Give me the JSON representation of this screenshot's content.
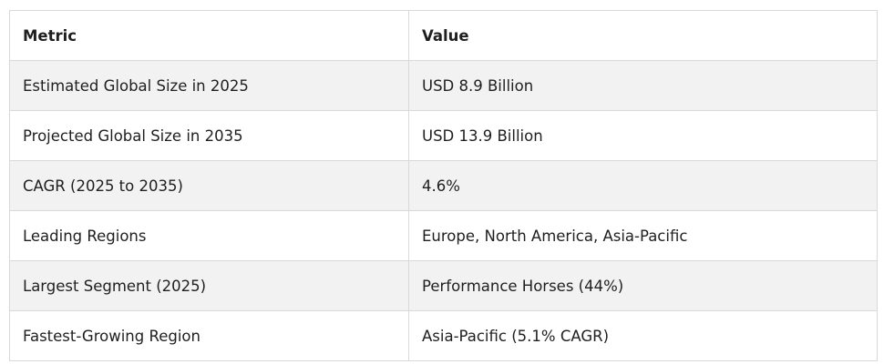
{
  "table": {
    "headers": [
      "Metric",
      "Value"
    ],
    "rows": [
      [
        "Estimated Global Size in 2025",
        "USD 8.9 Billion"
      ],
      [
        "Projected Global Size in 2035",
        "USD 13.9 Billion"
      ],
      [
        "CAGR (2025 to 2035)",
        "4.6%"
      ],
      [
        "Leading Regions",
        "Europe, North America, Asia-Pacific"
      ],
      [
        "Largest Segment (2025)",
        "Performance Horses (44%)"
      ],
      [
        "Fastest-Growing Region",
        "Asia-Pacific (5.1% CAGR)"
      ]
    ]
  }
}
